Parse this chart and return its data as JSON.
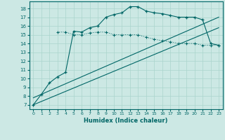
{
  "xlabel": "Humidex (Indice chaleur)",
  "bg_color": "#cce8e4",
  "grid_color": "#aad4cc",
  "line_color": "#006666",
  "xlim": [
    -0.5,
    23.5
  ],
  "ylim": [
    6.5,
    18.8
  ],
  "yticks": [
    7,
    8,
    9,
    10,
    11,
    12,
    13,
    14,
    15,
    16,
    17,
    18
  ],
  "xticks": [
    0,
    1,
    2,
    3,
    4,
    5,
    6,
    7,
    8,
    9,
    10,
    11,
    12,
    13,
    14,
    15,
    16,
    17,
    18,
    19,
    20,
    21,
    22,
    23
  ],
  "line1_x": [
    0,
    1,
    2,
    3,
    4,
    5,
    6,
    7,
    8,
    9,
    10,
    11,
    12,
    13,
    14,
    15,
    16,
    17,
    18,
    19,
    20,
    21,
    22,
    23
  ],
  "line1_y": [
    7.0,
    8.2,
    9.5,
    10.2,
    10.7,
    15.4,
    15.3,
    15.8,
    16.0,
    17.0,
    17.3,
    17.5,
    18.2,
    18.2,
    17.7,
    17.5,
    17.4,
    17.2,
    17.0,
    17.0,
    17.0,
    16.7,
    14.0,
    13.8
  ],
  "line2_x": [
    3,
    4,
    5,
    6,
    7,
    8,
    9,
    10,
    11,
    12,
    13,
    14,
    15,
    16,
    17,
    18,
    19,
    20,
    21,
    22,
    23
  ],
  "line2_y": [
    15.3,
    15.3,
    15.0,
    15.0,
    15.2,
    15.3,
    15.3,
    15.0,
    15.0,
    15.0,
    15.0,
    14.7,
    14.5,
    14.3,
    14.2,
    14.0,
    14.0,
    14.0,
    13.8,
    13.8,
    13.8
  ],
  "line3_x": [
    0,
    23
  ],
  "line3_y": [
    7.8,
    17.0
  ],
  "line4_x": [
    0,
    23
  ],
  "line4_y": [
    7.0,
    15.8
  ]
}
